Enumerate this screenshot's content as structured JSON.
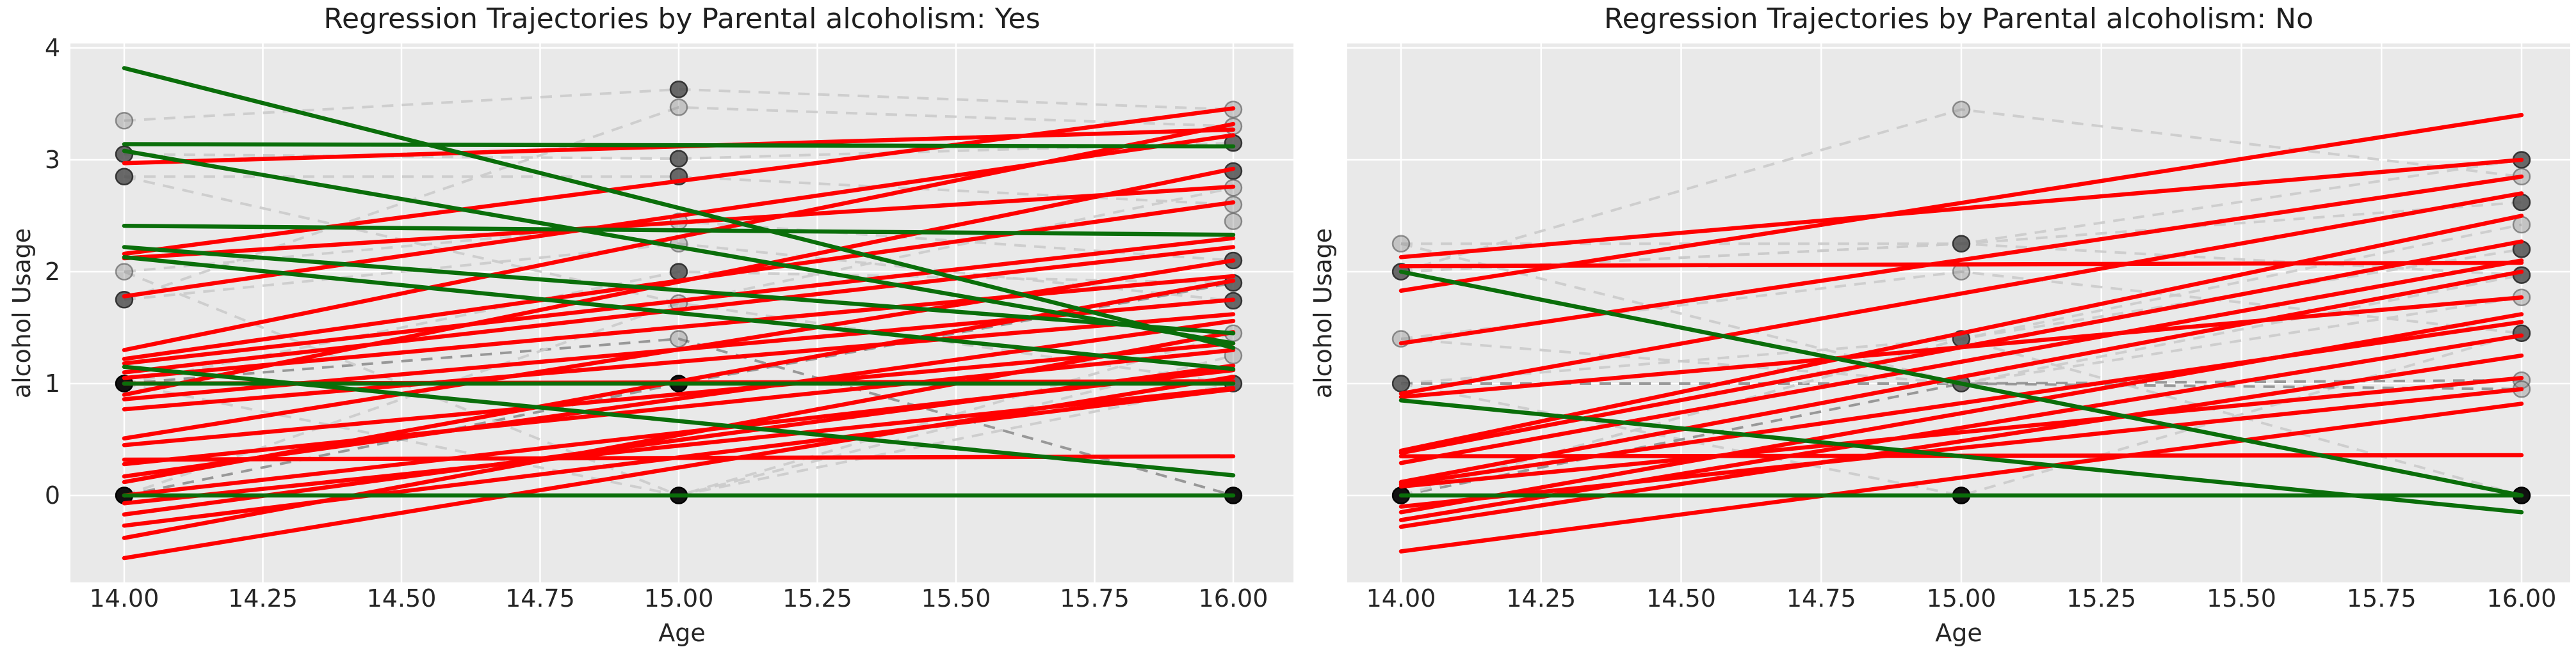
{
  "figure": {
    "background": "#ffffff",
    "axes_background": "#e9e9e9",
    "grid_color": "#ffffff",
    "title_color": "#1f1f1f",
    "tick_color": "#262626",
    "red_line_color": "#ff0000",
    "green_line_color": "#0a6e0a",
    "trajectory_light_color": "#cbcbcb",
    "trajectory_dark_color": "#8f8f8f",
    "point_light_fill": "rgba(135,135,135,0.38)",
    "point_light_stroke": "rgba(70,70,70,0.55)",
    "point_dark_fill": "rgba(80,80,80,0.85)",
    "point_dark_stroke": "rgba(40,40,40,0.9)",
    "point_black_fill": "#111111",
    "point_black_stroke": "#000000"
  },
  "chart_data": [
    {
      "type": "line",
      "title": "Regression Trajectories by Parental alcoholism: Yes",
      "xlabel": "Age",
      "ylabel": "alcohol Usage",
      "x": [
        14,
        15,
        16
      ],
      "x_tick_labels": [
        "14.00",
        "14.25",
        "14.50",
        "14.75",
        "15.00",
        "15.25",
        "15.50",
        "15.75",
        "16.00"
      ],
      "y_ticks": [
        0,
        1,
        2,
        3,
        4
      ],
      "show_y_tick_labels": true,
      "xlim": [
        13.9,
        16.1
      ],
      "ylim": [
        -0.78,
        4.04
      ],
      "grid": true,
      "legend": "none",
      "regression_lines": [
        {
          "color": "red",
          "y": [
            2.97,
            3.27
          ]
        },
        {
          "color": "red",
          "y": [
            2.16,
            3.46
          ]
        },
        {
          "color": "red",
          "y": [
            2.12,
            2.76
          ]
        },
        {
          "color": "red",
          "y": [
            1.78,
            3.22
          ]
        },
        {
          "color": "red",
          "y": [
            1.3,
            3.32
          ]
        },
        {
          "color": "red",
          "y": [
            1.22,
            2.62
          ]
        },
        {
          "color": "red",
          "y": [
            1.18,
            2.3
          ]
        },
        {
          "color": "red",
          "y": [
            1.1,
            2.22
          ]
        },
        {
          "color": "red",
          "y": [
            1.05,
            1.96
          ]
        },
        {
          "color": "red",
          "y": [
            0.9,
            2.92
          ]
        },
        {
          "color": "red",
          "y": [
            0.86,
            1.75
          ]
        },
        {
          "color": "red",
          "y": [
            0.77,
            1.62
          ]
        },
        {
          "color": "red",
          "y": [
            0.51,
            2.1
          ]
        },
        {
          "color": "red",
          "y": [
            0.45,
            1.36
          ]
        },
        {
          "color": "red",
          "y": [
            0.32,
            0.35
          ]
        },
        {
          "color": "red",
          "y": [
            0.28,
            1.3
          ]
        },
        {
          "color": "red",
          "y": [
            0.17,
            1.56
          ]
        },
        {
          "color": "red",
          "y": [
            0.12,
            1.92
          ]
        },
        {
          "color": "red",
          "y": [
            0.0,
            1.12
          ]
        },
        {
          "color": "red",
          "y": [
            -0.07,
            0.96
          ]
        },
        {
          "color": "red",
          "y": [
            -0.17,
            1.16
          ]
        },
        {
          "color": "red",
          "y": [
            -0.27,
            0.95
          ]
        },
        {
          "color": "red",
          "y": [
            -0.38,
            1.46
          ]
        },
        {
          "color": "red",
          "y": [
            -0.56,
            1.06
          ]
        },
        {
          "color": "red",
          "y": [
            1.0,
            1.02
          ]
        }
      ],
      "regression_lines_green": [
        {
          "color": "green",
          "y": [
            3.82,
            1.32
          ]
        },
        {
          "color": "green",
          "y": [
            3.14,
            3.12
          ]
        },
        {
          "color": "green",
          "y": [
            3.08,
            1.36
          ]
        },
        {
          "color": "green",
          "y": [
            2.41,
            2.33
          ]
        },
        {
          "color": "green",
          "y": [
            2.22,
            1.45
          ]
        },
        {
          "color": "green",
          "y": [
            2.13,
            1.13
          ]
        },
        {
          "color": "green",
          "y": [
            1.15,
            0.18
          ]
        },
        {
          "color": "green",
          "y": [
            1.0,
            1.0
          ]
        },
        {
          "color": "green",
          "y": [
            0.0,
            0.0
          ]
        }
      ],
      "trajectories": [
        {
          "shade": "light",
          "y": [
            3.35,
            3.63,
            3.45
          ]
        },
        {
          "shade": "light",
          "y": [
            3.05,
            3.01,
            3.15
          ]
        },
        {
          "shade": "light",
          "y": [
            2.85,
            2.85,
            2.6
          ]
        },
        {
          "shade": "light",
          "y": [
            2.85,
            1.72,
            2.75
          ]
        },
        {
          "shade": "light",
          "y": [
            2.0,
            2.45,
            2.1
          ]
        },
        {
          "shade": "light",
          "y": [
            1.75,
            3.47,
            3.3
          ]
        },
        {
          "shade": "light",
          "y": [
            1.75,
            2.25,
            1.74
          ]
        },
        {
          "shade": "dark",
          "y": [
            1.0,
            1.0,
            1.0
          ]
        },
        {
          "shade": "light",
          "y": [
            1.0,
            2.0,
            1.9
          ]
        },
        {
          "shade": "light",
          "y": [
            1.0,
            0.0,
            1.45
          ]
        },
        {
          "shade": "dark",
          "y": [
            0.0,
            0.0,
            0.0
          ]
        },
        {
          "shade": "dark",
          "y": [
            0.0,
            1.0,
            1.9
          ]
        },
        {
          "shade": "light",
          "y": [
            0.0,
            0.0,
            1.0
          ]
        },
        {
          "shade": "dark",
          "y": [
            1.0,
            1.4,
            0.0
          ]
        },
        {
          "shade": "light",
          "y": [
            2.0,
            0.0,
            1.25
          ]
        },
        {
          "shade": "light",
          "y": [
            0.0,
            1.72,
            1.0
          ]
        }
      ],
      "points": [
        {
          "age": 14,
          "y": 3.35,
          "shade": "light"
        },
        {
          "age": 14,
          "y": 3.05,
          "shade": "dark"
        },
        {
          "age": 14,
          "y": 2.85,
          "shade": "dark"
        },
        {
          "age": 14,
          "y": 2.0,
          "shade": "light"
        },
        {
          "age": 14,
          "y": 1.75,
          "shade": "dark"
        },
        {
          "age": 14,
          "y": 1.0,
          "shade": "black"
        },
        {
          "age": 14,
          "y": 0.0,
          "shade": "black"
        },
        {
          "age": 15,
          "y": 3.63,
          "shade": "dark"
        },
        {
          "age": 15,
          "y": 3.47,
          "shade": "light"
        },
        {
          "age": 15,
          "y": 3.01,
          "shade": "dark"
        },
        {
          "age": 15,
          "y": 2.85,
          "shade": "dark"
        },
        {
          "age": 15,
          "y": 2.45,
          "shade": "light"
        },
        {
          "age": 15,
          "y": 2.25,
          "shade": "light"
        },
        {
          "age": 15,
          "y": 2.0,
          "shade": "dark"
        },
        {
          "age": 15,
          "y": 1.72,
          "shade": "light"
        },
        {
          "age": 15,
          "y": 1.4,
          "shade": "light"
        },
        {
          "age": 15,
          "y": 1.0,
          "shade": "black"
        },
        {
          "age": 15,
          "y": 0.0,
          "shade": "black"
        },
        {
          "age": 16,
          "y": 3.45,
          "shade": "light"
        },
        {
          "age": 16,
          "y": 3.3,
          "shade": "light"
        },
        {
          "age": 16,
          "y": 3.15,
          "shade": "dark"
        },
        {
          "age": 16,
          "y": 2.9,
          "shade": "dark"
        },
        {
          "age": 16,
          "y": 2.75,
          "shade": "light"
        },
        {
          "age": 16,
          "y": 2.6,
          "shade": "light"
        },
        {
          "age": 16,
          "y": 2.45,
          "shade": "light"
        },
        {
          "age": 16,
          "y": 2.1,
          "shade": "dark"
        },
        {
          "age": 16,
          "y": 1.9,
          "shade": "dark"
        },
        {
          "age": 16,
          "y": 1.74,
          "shade": "dark"
        },
        {
          "age": 16,
          "y": 1.45,
          "shade": "light"
        },
        {
          "age": 16,
          "y": 1.25,
          "shade": "light"
        },
        {
          "age": 16,
          "y": 1.0,
          "shade": "dark"
        },
        {
          "age": 16,
          "y": 0.0,
          "shade": "black"
        }
      ]
    },
    {
      "type": "line",
      "title": "Regression Trajectories by Parental alcoholism: No",
      "xlabel": "Age",
      "ylabel": "alcohol Usage",
      "x": [
        14,
        15,
        16
      ],
      "x_tick_labels": [
        "14.00",
        "14.25",
        "14.50",
        "14.75",
        "15.00",
        "15.25",
        "15.50",
        "15.75",
        "16.00"
      ],
      "y_ticks": [
        0,
        1,
        2,
        3,
        4
      ],
      "show_y_tick_labels": false,
      "xlim": [
        13.9,
        16.1
      ],
      "ylim": [
        -0.78,
        4.04
      ],
      "grid": true,
      "legend": "none",
      "regression_lines": [
        {
          "color": "red",
          "y": [
            1.83,
            3.4
          ]
        },
        {
          "color": "red",
          "y": [
            2.13,
            3.0
          ]
        },
        {
          "color": "red",
          "y": [
            1.36,
            2.85
          ]
        },
        {
          "color": "red",
          "y": [
            0.91,
            2.7
          ]
        },
        {
          "color": "red",
          "y": [
            0.4,
            2.5
          ]
        },
        {
          "color": "red",
          "y": [
            0.38,
            2.27
          ]
        },
        {
          "color": "red",
          "y": [
            0.29,
            2.1
          ]
        },
        {
          "color": "red",
          "y": [
            2.05,
            2.08
          ]
        },
        {
          "color": "red",
          "y": [
            0.12,
            2.0
          ]
        },
        {
          "color": "red",
          "y": [
            0.88,
            1.77
          ]
        },
        {
          "color": "red",
          "y": [
            -0.15,
            1.62
          ]
        },
        {
          "color": "red",
          "y": [
            0.1,
            1.55
          ]
        },
        {
          "color": "red",
          "y": [
            -0.22,
            1.43
          ]
        },
        {
          "color": "red",
          "y": [
            -0.28,
            1.25
          ]
        },
        {
          "color": "red",
          "y": [
            0.08,
            1.05
          ]
        },
        {
          "color": "red",
          "y": [
            -0.1,
            0.95
          ]
        },
        {
          "color": "red",
          "y": [
            -0.5,
            0.82
          ]
        },
        {
          "color": "red",
          "y": [
            0.35,
            0.36
          ]
        }
      ],
      "regression_lines_green": [
        {
          "color": "green",
          "y": [
            2.0,
            0.0
          ]
        },
        {
          "color": "green",
          "y": [
            0.85,
            -0.15
          ]
        },
        {
          "color": "green",
          "y": [
            0.0,
            0.0
          ]
        }
      ],
      "trajectories": [
        {
          "shade": "light",
          "y": [
            2.25,
            2.25,
            2.62
          ]
        },
        {
          "shade": "light",
          "y": [
            2.0,
            2.25,
            3.0
          ]
        },
        {
          "shade": "light",
          "y": [
            2.0,
            3.45,
            2.85
          ]
        },
        {
          "shade": "light",
          "y": [
            1.4,
            2.0,
            1.45
          ]
        },
        {
          "shade": "light",
          "y": [
            1.0,
            1.4,
            2.2
          ]
        },
        {
          "shade": "dark",
          "y": [
            1.0,
            1.0,
            1.03
          ]
        },
        {
          "shade": "light",
          "y": [
            1.0,
            0.0,
            1.45
          ]
        },
        {
          "shade": "dark",
          "y": [
            0.0,
            0.0,
            0.0
          ]
        },
        {
          "shade": "dark",
          "y": [
            0.0,
            1.0,
            0.95
          ]
        },
        {
          "shade": "light",
          "y": [
            0.0,
            1.4,
            0.0
          ]
        },
        {
          "shade": "light",
          "y": [
            2.25,
            1.0,
            1.97
          ]
        },
        {
          "shade": "light",
          "y": [
            1.4,
            1.0,
            1.77
          ]
        },
        {
          "shade": "light",
          "y": [
            0.0,
            1.4,
            2.42
          ]
        },
        {
          "shade": "light",
          "y": [
            2.0,
            2.25,
            1.97
          ]
        }
      ],
      "points": [
        {
          "age": 14,
          "y": 2.25,
          "shade": "light"
        },
        {
          "age": 14,
          "y": 2.0,
          "shade": "dark"
        },
        {
          "age": 14,
          "y": 1.4,
          "shade": "light"
        },
        {
          "age": 14,
          "y": 1.0,
          "shade": "dark"
        },
        {
          "age": 14,
          "y": 0.0,
          "shade": "black"
        },
        {
          "age": 15,
          "y": 3.45,
          "shade": "light"
        },
        {
          "age": 15,
          "y": 2.25,
          "shade": "dark"
        },
        {
          "age": 15,
          "y": 2.0,
          "shade": "light"
        },
        {
          "age": 15,
          "y": 1.4,
          "shade": "dark"
        },
        {
          "age": 15,
          "y": 1.0,
          "shade": "dark"
        },
        {
          "age": 15,
          "y": 0.0,
          "shade": "black"
        },
        {
          "age": 16,
          "y": 3.0,
          "shade": "dark"
        },
        {
          "age": 16,
          "y": 2.85,
          "shade": "light"
        },
        {
          "age": 16,
          "y": 2.62,
          "shade": "dark"
        },
        {
          "age": 16,
          "y": 2.42,
          "shade": "light"
        },
        {
          "age": 16,
          "y": 2.2,
          "shade": "dark"
        },
        {
          "age": 16,
          "y": 1.97,
          "shade": "dark"
        },
        {
          "age": 16,
          "y": 1.77,
          "shade": "light"
        },
        {
          "age": 16,
          "y": 1.45,
          "shade": "dark"
        },
        {
          "age": 16,
          "y": 1.03,
          "shade": "light"
        },
        {
          "age": 16,
          "y": 0.95,
          "shade": "light"
        },
        {
          "age": 16,
          "y": 0.0,
          "shade": "black"
        }
      ]
    }
  ]
}
